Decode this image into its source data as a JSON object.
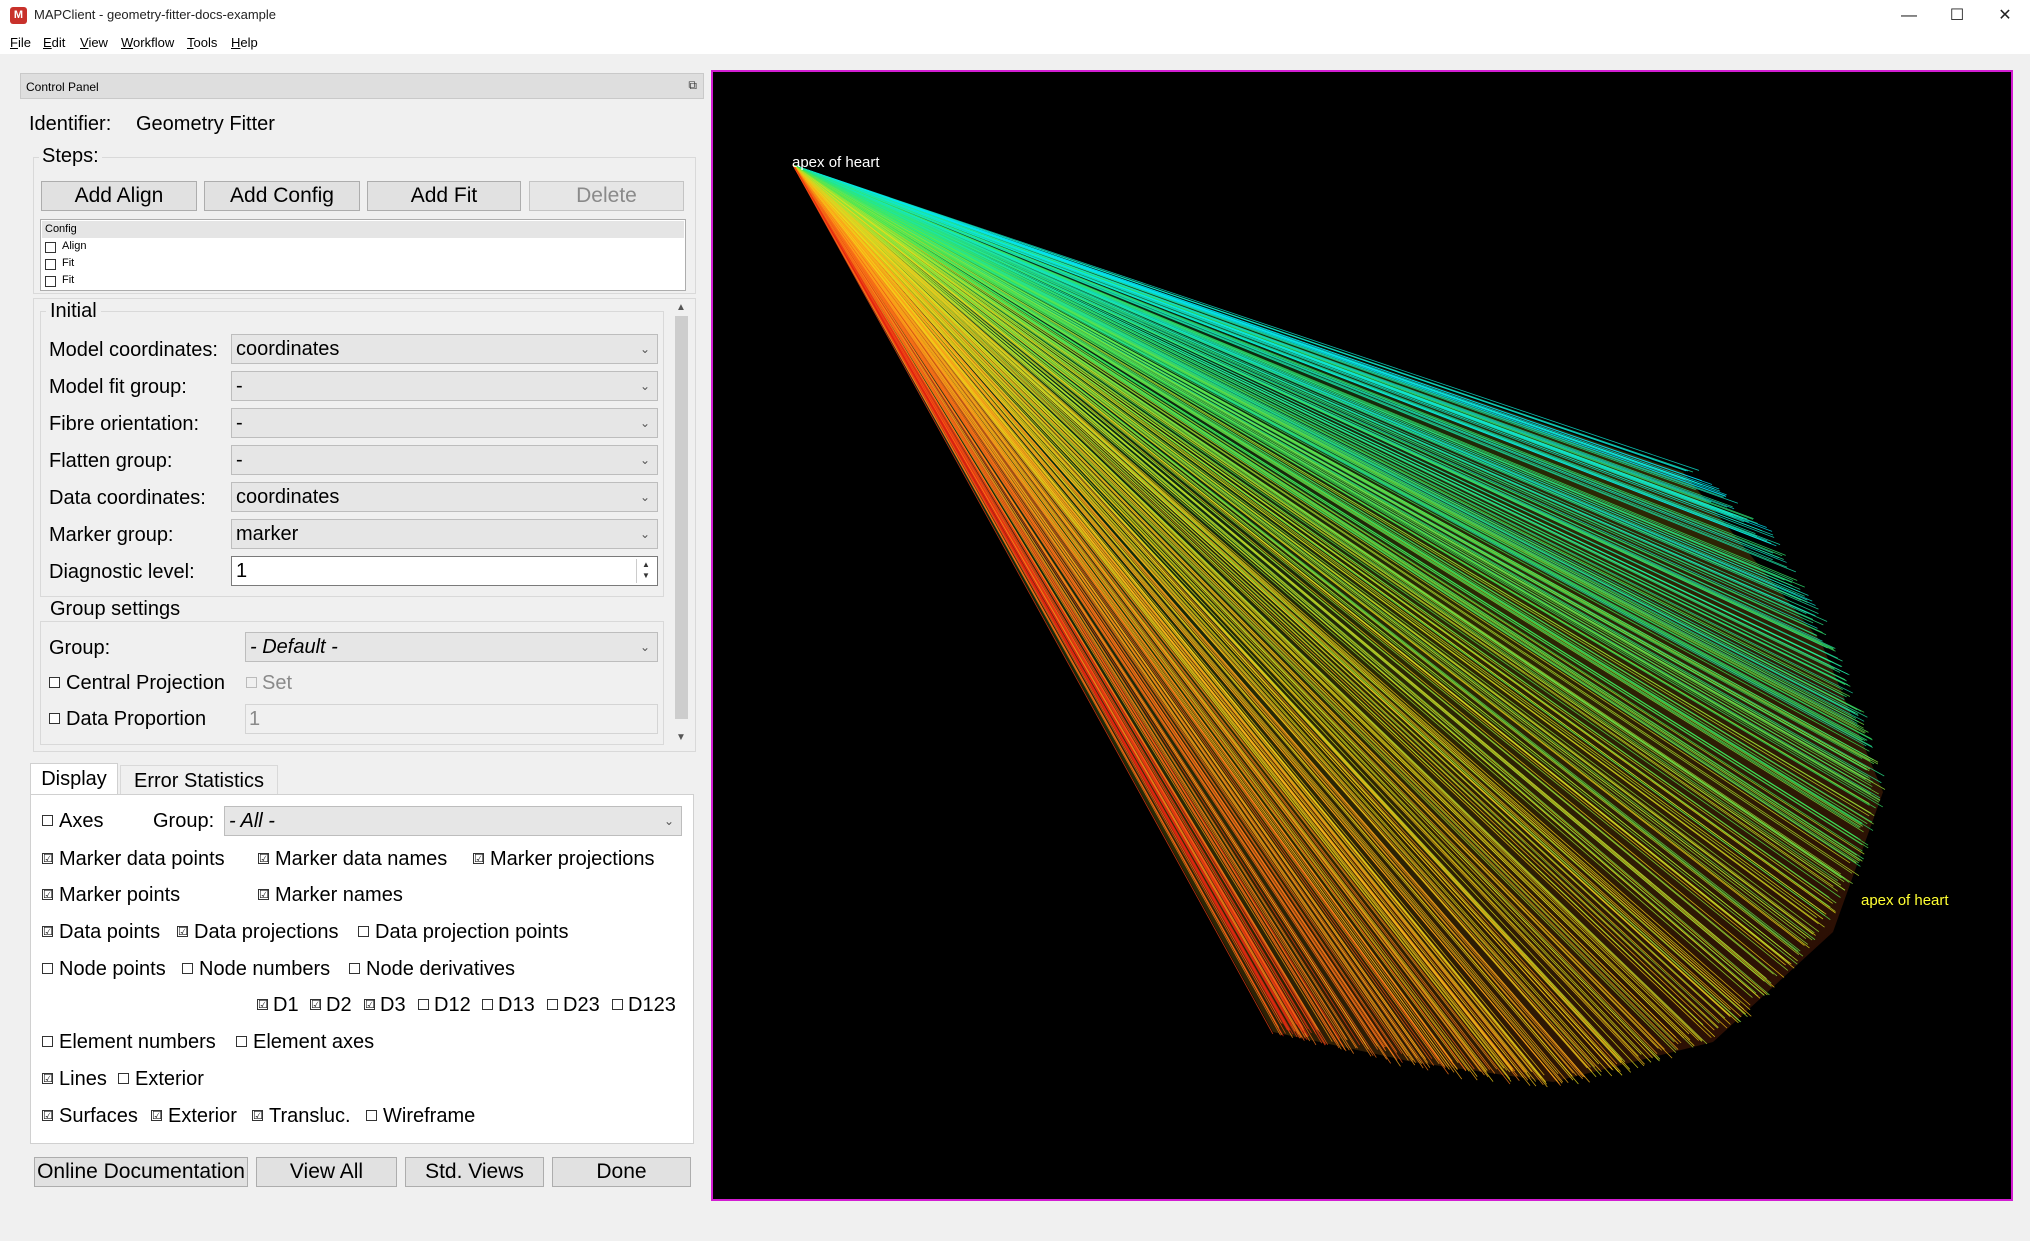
{
  "window": {
    "title": "MAPClient - geometry-fitter-docs-example",
    "app_icon": "mapclient-icon",
    "minimize": "—",
    "maximize": "☐",
    "close": "✕"
  },
  "menu": [
    {
      "accel": "F",
      "rest": "ile"
    },
    {
      "accel": "E",
      "rest": "dit"
    },
    {
      "accel": "V",
      "rest": "iew"
    },
    {
      "accel": "W",
      "rest": "orkflow"
    },
    {
      "accel": "T",
      "rest": "ools"
    },
    {
      "accel": "H",
      "rest": "elp"
    }
  ],
  "dock": {
    "title": "Control Panel",
    "float_icon": "⧉"
  },
  "identifier": {
    "label": "Identifier:",
    "value": "Geometry Fitter"
  },
  "steps": {
    "label": "Steps:",
    "buttons": {
      "add_align": "Add Align",
      "add_config": "Add Config",
      "add_fit": "Add Fit",
      "delete": "Delete"
    },
    "list": [
      {
        "name": "Config",
        "checkbox": false,
        "selected": true
      },
      {
        "name": "Align",
        "checkbox": true,
        "checked": false
      },
      {
        "name": "Fit",
        "checkbox": true,
        "checked": false
      },
      {
        "name": "Fit",
        "checkbox": true,
        "checked": false
      }
    ]
  },
  "initial": {
    "title": "Initial",
    "model_coordinates": {
      "label": "Model coordinates:",
      "value": "coordinates"
    },
    "model_fit_group": {
      "label": "Model fit group:",
      "value": "-"
    },
    "fibre_orientation": {
      "label": "Fibre orientation:",
      "value": "-"
    },
    "flatten_group": {
      "label": "Flatten group:",
      "value": "-"
    },
    "data_coordinates": {
      "label": "Data coordinates:",
      "value": "coordinates"
    },
    "marker_group": {
      "label": "Marker group:",
      "value": "marker"
    },
    "diagnostic_level": {
      "label": "Diagnostic level:",
      "value": "1"
    }
  },
  "group_settings": {
    "title": "Group settings",
    "group": {
      "label": "Group:",
      "value": "- Default -"
    },
    "central_projection": {
      "label": "Central Projection",
      "checked": false,
      "set_label": "Set"
    },
    "data_proportion": {
      "label": "Data Proportion",
      "checked": false,
      "value": "1"
    }
  },
  "tabs": {
    "display": "Display",
    "error_statistics": "Error Statistics"
  },
  "display": {
    "axes": "Axes",
    "group_label": "Group:",
    "group_value": "- All -",
    "marker_data_points": "Marker data points",
    "marker_data_names": "Marker data names",
    "marker_projections": "Marker projections",
    "marker_points": "Marker points",
    "marker_names": "Marker names",
    "data_points": "Data points",
    "data_projections": "Data projections",
    "data_projection_points": "Data projection points",
    "node_points": "Node points",
    "node_numbers": "Node numbers",
    "node_derivatives": "Node derivatives",
    "d1": "D1",
    "d2": "D2",
    "d3": "D3",
    "d12": "D12",
    "d13": "D13",
    "d23": "D23",
    "d123": "D123",
    "element_numbers": "Element numbers",
    "element_axes": "Element axes",
    "lines": "Lines",
    "lines_exterior": "Exterior",
    "surfaces": "Surfaces",
    "surfaces_exterior": "Exterior",
    "transluc": "Transluc.",
    "wireframe": "Wireframe",
    "check_mark": "☑"
  },
  "bottom_buttons": {
    "online_docs": "Online Documentation",
    "view_all": "View All",
    "std_views": "Std. Views",
    "done": "Done"
  },
  "viewer": {
    "label_top": "apex of heart",
    "label_right": "apex of heart",
    "label_top_color": "#ffffff",
    "label_right_color": "#ffff33",
    "border_color": "#d21dd2"
  },
  "scroll": {
    "up": "▲",
    "down": "▼"
  },
  "combo_arrow": "⌄"
}
